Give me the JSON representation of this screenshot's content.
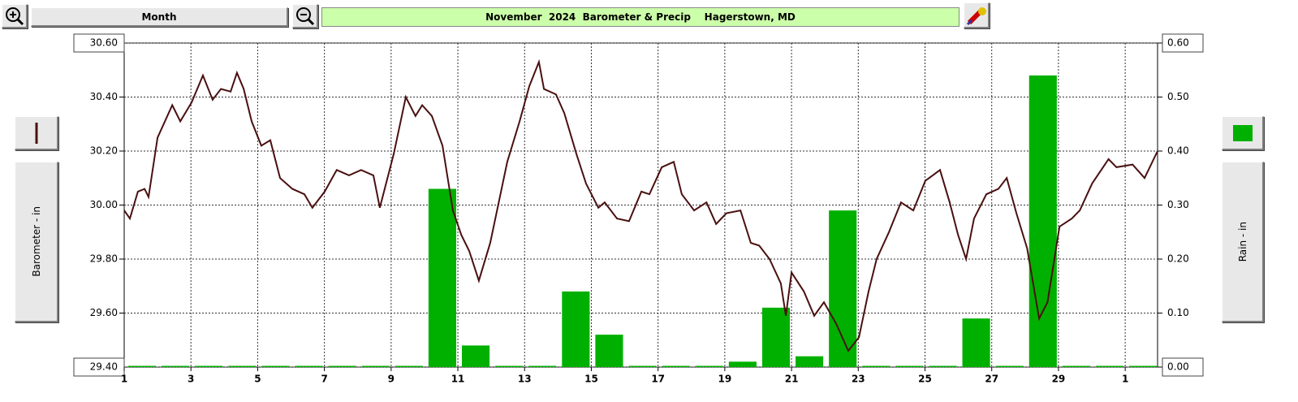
{
  "ui": {
    "period_button": "Month"
  },
  "chart_data": {
    "type": "bar-line",
    "title": "November  2024  Barometer & Precip    Hagerstown, MD",
    "xlim": [
      1,
      31.97
    ],
    "xticks": [
      1,
      3,
      5,
      7,
      9,
      11,
      13,
      15,
      17,
      19,
      21,
      23,
      25,
      27,
      29,
      {
        "value": 31,
        "label": "1"
      }
    ],
    "ylim": [
      29.4,
      30.6
    ],
    "yticks": [
      {
        "value": 30.6,
        "label": "30.60"
      },
      {
        "value": 30.4,
        "label": "30.40"
      },
      {
        "value": 30.2,
        "label": "30.20"
      },
      {
        "value": 30,
        "label": "30.00"
      },
      {
        "value": 29.8,
        "label": "29.80"
      },
      {
        "value": 29.6,
        "label": "29.60"
      },
      {
        "value": 29.4,
        "label": "29.40"
      }
    ],
    "y2lim": [
      0,
      0.6
    ],
    "y2ticks": [
      {
        "value": 0.6,
        "label": "0.60"
      },
      {
        "value": 0.5,
        "label": "0.50"
      },
      {
        "value": 0.4,
        "label": "0.40"
      },
      {
        "value": 0.3,
        "label": "0.30"
      },
      {
        "value": 0.2,
        "label": "0.20"
      },
      {
        "value": 0.1,
        "label": "0.10"
      },
      {
        "value": 0,
        "label": "0.00"
      }
    ],
    "grid": true,
    "series": [
      {
        "name": "Barometer - in",
        "type": "line",
        "color": "#4a1010",
        "x": [
          1.0,
          1.17,
          1.41,
          1.61,
          1.73,
          2.0,
          2.44,
          2.68,
          3.02,
          3.36,
          3.65,
          3.9,
          4.19,
          4.38,
          4.58,
          4.82,
          5.11,
          5.38,
          5.67,
          6.04,
          6.4,
          6.64,
          7.01,
          7.37,
          7.74,
          8.1,
          8.47,
          8.66,
          9.08,
          9.44,
          9.73,
          9.93,
          10.22,
          10.54,
          10.85,
          11.1,
          11.34,
          11.63,
          11.97,
          12.48,
          12.85,
          13.14,
          13.43,
          13.58,
          13.94,
          14.19,
          14.55,
          14.84,
          15.21,
          15.4,
          15.77,
          16.13,
          16.5,
          16.74,
          17.11,
          17.47,
          17.71,
          18.08,
          18.45,
          18.74,
          19.05,
          19.47,
          19.78,
          20.03,
          20.34,
          20.68,
          20.83,
          21.0,
          21.37,
          21.68,
          21.97,
          22.34,
          22.7,
          23.02,
          23.31,
          23.55,
          23.92,
          24.28,
          24.65,
          25.01,
          25.45,
          25.74,
          25.99,
          26.23,
          26.47,
          26.84,
          27.2,
          27.45,
          27.74,
          28.06,
          28.42,
          28.67,
          29.03,
          29.4,
          29.64,
          30.01,
          30.5,
          30.74,
          31.22,
          31.58,
          31.97
        ],
        "values": [
          29.98,
          29.95,
          30.05,
          30.06,
          30.03,
          30.25,
          30.37,
          30.31,
          30.38,
          30.48,
          30.39,
          30.43,
          30.42,
          30.49,
          30.43,
          30.31,
          30.22,
          30.24,
          30.1,
          30.06,
          30.04,
          29.99,
          30.05,
          30.13,
          30.11,
          30.13,
          30.11,
          29.99,
          30.19,
          30.4,
          30.33,
          30.37,
          30.33,
          30.22,
          29.98,
          29.89,
          29.83,
          29.72,
          29.86,
          30.16,
          30.31,
          30.44,
          30.53,
          30.43,
          30.41,
          30.34,
          30.19,
          30.08,
          29.99,
          30.01,
          29.95,
          29.94,
          30.05,
          30.04,
          30.14,
          30.16,
          30.04,
          29.98,
          30.01,
          29.93,
          29.97,
          29.98,
          29.86,
          29.85,
          29.8,
          29.71,
          29.59,
          29.75,
          29.68,
          29.59,
          29.64,
          29.56,
          29.46,
          29.51,
          29.68,
          29.8,
          29.9,
          30.01,
          29.98,
          30.09,
          30.13,
          30.01,
          29.89,
          29.8,
          29.95,
          30.04,
          30.06,
          30.1,
          29.97,
          29.84,
          29.58,
          29.64,
          29.92,
          29.95,
          29.98,
          30.08,
          30.17,
          30.14,
          30.15,
          30.1,
          30.2
        ]
      },
      {
        "name": "Rain - in",
        "type": "bar",
        "axis": "y2",
        "color": "#00b000",
        "x": [
          1,
          2,
          3,
          4,
          5,
          6,
          7,
          8,
          9,
          10,
          11,
          12,
          13,
          14,
          15,
          16,
          17,
          18,
          19,
          20,
          21,
          22,
          23,
          24,
          25,
          26,
          27,
          28,
          29,
          30,
          31
        ],
        "values": [
          0,
          0,
          0,
          0,
          0,
          0,
          0,
          0,
          0,
          0.33,
          0.04,
          0,
          0,
          0.14,
          0.06,
          0,
          0,
          0,
          0.01,
          0.11,
          0.02,
          0.29,
          0,
          0,
          0,
          0.09,
          0,
          0.54,
          0,
          0,
          0
        ]
      }
    ]
  }
}
